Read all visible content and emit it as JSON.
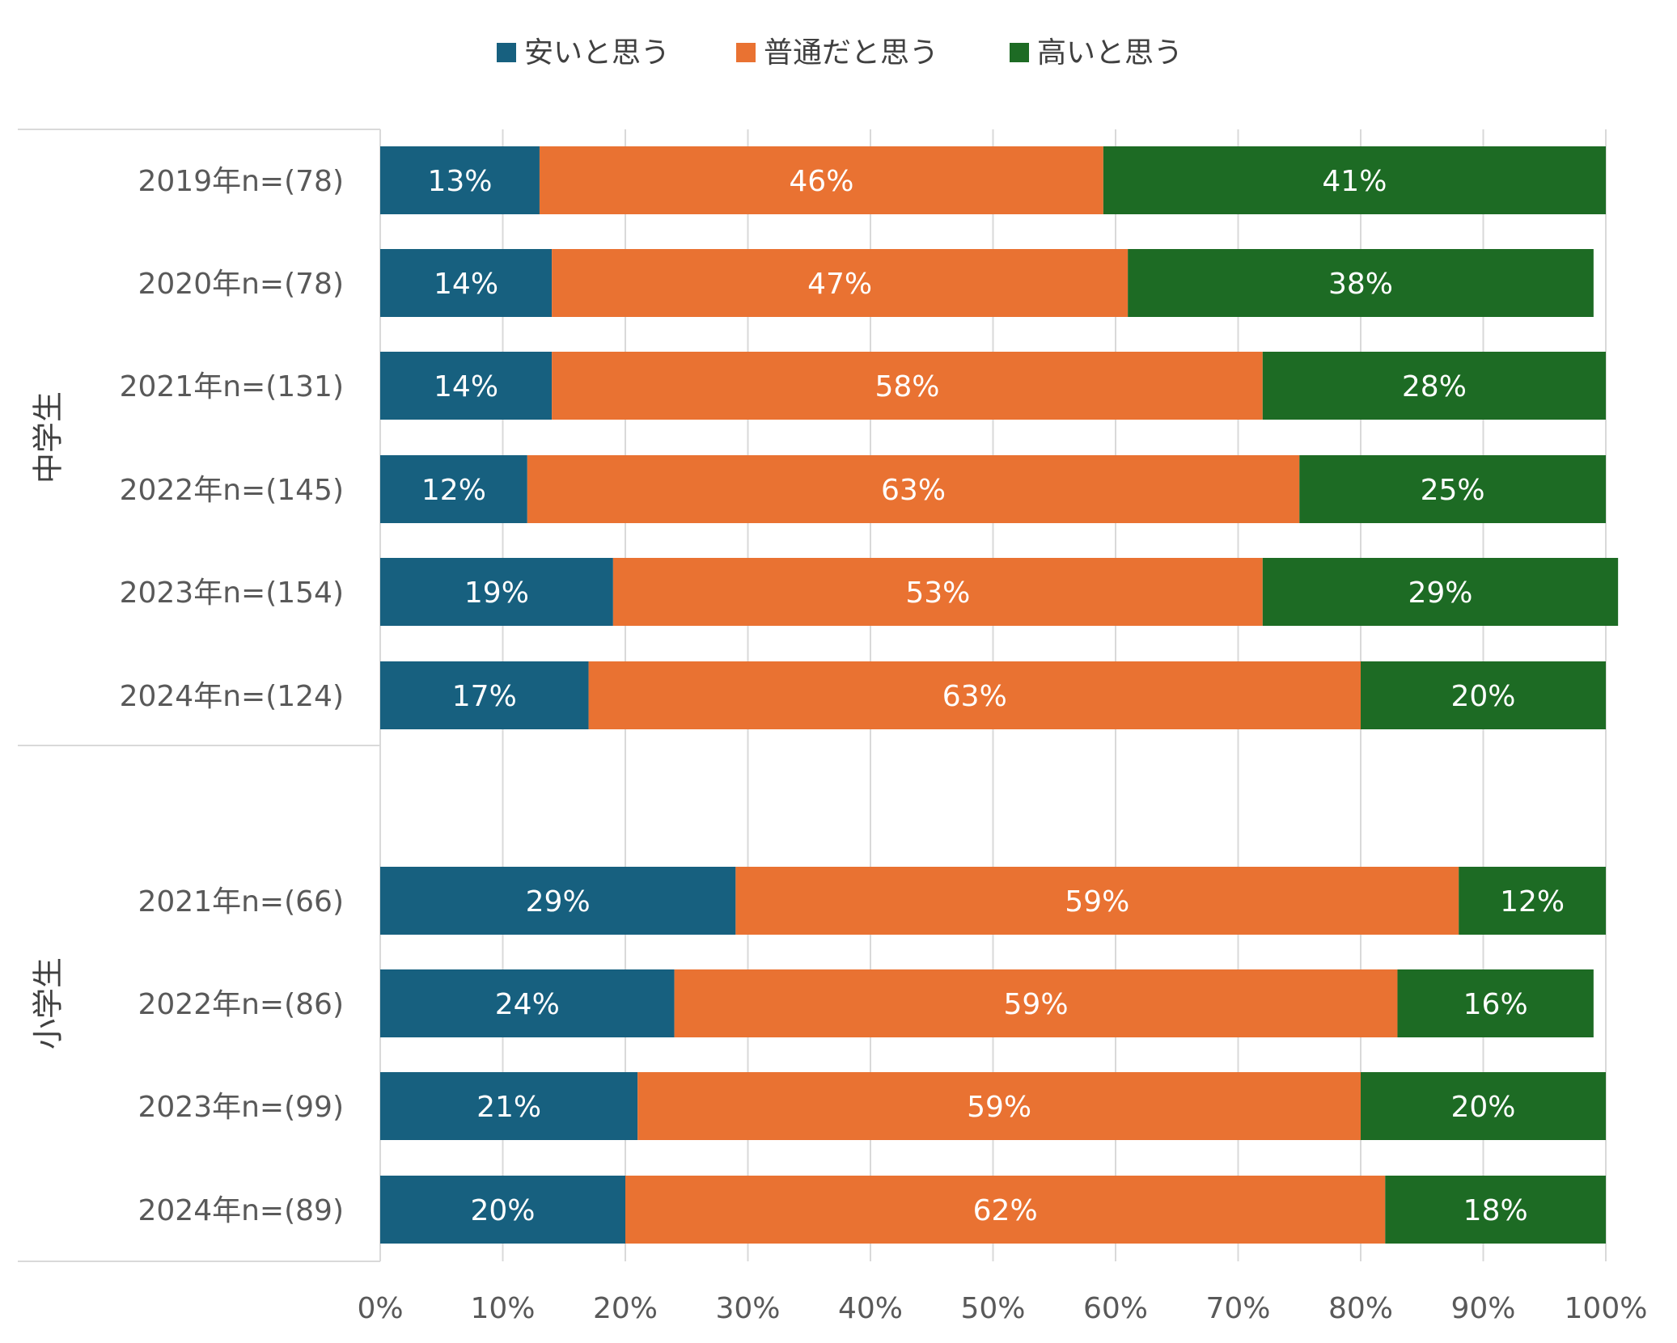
{
  "chart_data": {
    "type": "bar",
    "orientation": "horizontal",
    "stacked": true,
    "percent": true,
    "legend_position": "top",
    "grid": true,
    "xlim": [
      0,
      100
    ],
    "x_ticks": [
      "0%",
      "10%",
      "20%",
      "30%",
      "40%",
      "50%",
      "60%",
      "70%",
      "80%",
      "90%",
      "100%"
    ],
    "groups": [
      {
        "label": "中学生",
        "categories": [
          "2019年n=(78)",
          "2020年n=(78)",
          "2021年n=(131)",
          "2022年n=(145)",
          "2023年n=(154)",
          "2024年n=(124)"
        ]
      },
      {
        "label": "小学生",
        "categories": [
          "2021年n=(66)",
          "2022年n=(86)",
          "2023年n=(99)",
          "2024年n=(89)"
        ]
      }
    ],
    "series": [
      {
        "name": "安いと思う",
        "color": "#17607f",
        "values": [
          13,
          14,
          14,
          12,
          19,
          17,
          29,
          24,
          21,
          20
        ],
        "labels": [
          "13%",
          "14%",
          "14%",
          "12%",
          "19%",
          "17%",
          "29%",
          "24%",
          "21%",
          "20%"
        ]
      },
      {
        "name": "普通だと思う",
        "color": "#e97232",
        "values": [
          46,
          47,
          58,
          63,
          53,
          63,
          59,
          59,
          59,
          62
        ],
        "labels": [
          "46%",
          "47%",
          "58%",
          "63%",
          "53%",
          "63%",
          "59%",
          "59%",
          "59%",
          "62%"
        ]
      },
      {
        "name": "高いと思う",
        "color": "#1d6b24",
        "values": [
          41,
          38,
          28,
          25,
          29,
          20,
          12,
          16,
          20,
          18
        ],
        "labels": [
          "41%",
          "38%",
          "28%",
          "25%",
          "29%",
          "20%",
          "12%",
          "16%",
          "20%",
          "18%"
        ]
      }
    ]
  }
}
